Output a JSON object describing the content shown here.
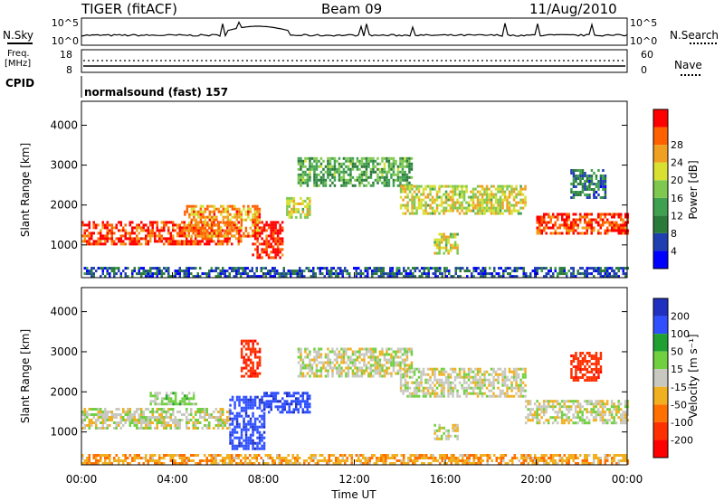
{
  "header": {
    "title": "TIGER (fitACF)",
    "beam": "Beam 09",
    "date": "11/Aug/2010"
  },
  "top_panels": {
    "nsky_label": "N.Sky",
    "nsky_ticks": [
      "10^5",
      "10^0"
    ],
    "nsearch_label": "N.Search",
    "nsearch_ticks": [
      "10^5",
      "10^0"
    ],
    "freq_label_1": "Freq.",
    "freq_label_2": "[MHz]",
    "freq_ticks": [
      "18",
      "8"
    ],
    "nave_label": "Nave",
    "nave_ticks": [
      "60",
      "0"
    ],
    "cpid_label": "CPID",
    "cpid_value": "normalsound (fast) 157"
  },
  "chart_data": [
    {
      "type": "heatmap",
      "name": "power",
      "ylabel": "Slant Range [km]",
      "ylim": [
        180,
        4600
      ],
      "yticks": [
        "1000",
        "2000",
        "3000",
        "4000"
      ],
      "xlabel": "",
      "xlim": [
        "00:00",
        "24:00"
      ],
      "colorbar": {
        "label": "Power [dB]",
        "ticks": [
          "4",
          "8",
          "12",
          "16",
          "20",
          "24",
          "28"
        ],
        "colors": [
          "#0000ff",
          "#1f3fb0",
          "#2a7a3a",
          "#3fa050",
          "#7ec850",
          "#d8e030",
          "#f0a020",
          "#ff6000",
          "#ff0000"
        ]
      },
      "echo_regions": [
        {
          "t0": 0.0,
          "t1": 7.0,
          "r0": 1050,
          "r1": 1600,
          "level": 26
        },
        {
          "t0": 4.5,
          "t1": 7.8,
          "r0": 1200,
          "r1": 2000,
          "level": 22
        },
        {
          "t0": 7.5,
          "t1": 8.8,
          "r0": 700,
          "r1": 1600,
          "level": 28
        },
        {
          "t0": 9.0,
          "t1": 10.0,
          "r0": 1700,
          "r1": 2200,
          "level": 18
        },
        {
          "t0": 9.5,
          "t1": 14.5,
          "r0": 2500,
          "r1": 3200,
          "level": 12
        },
        {
          "t0": 14.0,
          "t1": 19.5,
          "r0": 1800,
          "r1": 2500,
          "level": 18
        },
        {
          "t0": 15.5,
          "t1": 16.5,
          "r0": 800,
          "r1": 1300,
          "level": 18
        },
        {
          "t0": 20.0,
          "t1": 24.0,
          "r0": 1300,
          "r1": 1800,
          "level": 26
        },
        {
          "t0": 21.5,
          "t1": 23.0,
          "r0": 2200,
          "r1": 2900,
          "level": 8
        },
        {
          "t0": 0.0,
          "t1": 24.0,
          "r0": 200,
          "r1": 450,
          "level": 6
        }
      ]
    },
    {
      "type": "heatmap",
      "name": "velocity",
      "ylabel": "Slant Range [km]",
      "ylim": [
        180,
        4600
      ],
      "yticks": [
        "1000",
        "2000",
        "3000",
        "4000"
      ],
      "xlabel": "Time UT",
      "xlim": [
        "00:00",
        "24:00"
      ],
      "xticks": [
        "00:00",
        "04:00",
        "08:00",
        "12:00",
        "16:00",
        "20:00",
        "00:00"
      ],
      "colorbar": {
        "label": "Velocity [m s⁻¹]",
        "ticks": [
          "200",
          "100",
          "50",
          "15",
          "-15",
          "-50",
          "-100",
          "-200"
        ],
        "colors": [
          "#2030c0",
          "#3050ff",
          "#20a030",
          "#70d040",
          "#c8c8c0",
          "#f0b020",
          "#ff7000",
          "#ff3000",
          "#ff0000"
        ]
      },
      "echo_regions": [
        {
          "t0": 0.0,
          "t1": 6.5,
          "r0": 1100,
          "r1": 1600,
          "vel": 0
        },
        {
          "t0": 3.0,
          "t1": 5.0,
          "r0": 1700,
          "r1": 2000,
          "vel": 30
        },
        {
          "t0": 6.5,
          "t1": 8.0,
          "r0": 600,
          "r1": 1900,
          "vel": 180
        },
        {
          "t0": 8.0,
          "t1": 10.0,
          "r0": 1500,
          "r1": 2000,
          "vel": 180
        },
        {
          "t0": 7.0,
          "t1": 7.8,
          "r0": 2400,
          "r1": 3300,
          "vel": -180
        },
        {
          "t0": 9.5,
          "t1": 14.5,
          "r0": 2400,
          "r1": 3100,
          "vel": 0
        },
        {
          "t0": 14.0,
          "t1": 19.5,
          "r0": 1900,
          "r1": 2600,
          "vel": 0
        },
        {
          "t0": 15.5,
          "t1": 16.5,
          "r0": 800,
          "r1": 1200,
          "vel": 0
        },
        {
          "t0": 19.5,
          "t1": 24.0,
          "r0": 1200,
          "r1": 1800,
          "vel": 0
        },
        {
          "t0": 21.5,
          "t1": 22.8,
          "r0": 2300,
          "r1": 3000,
          "vel": -180
        },
        {
          "t0": 0.0,
          "t1": 24.0,
          "r0": 200,
          "r1": 450,
          "vel": -40
        }
      ]
    }
  ]
}
